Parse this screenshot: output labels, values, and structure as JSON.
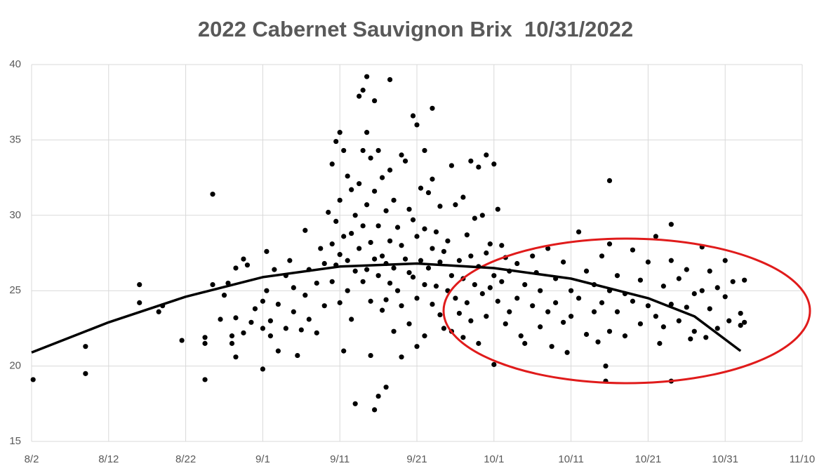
{
  "chart_data": {
    "type": "scatter",
    "title": "2022 Cabernet Sauvignon Brix  10/31/2022",
    "xlim": [
      214,
      314
    ],
    "xticks": [
      {
        "value": 214,
        "label": "8/2"
      },
      {
        "value": 224,
        "label": "8/12"
      },
      {
        "value": 234,
        "label": "8/22"
      },
      {
        "value": 244,
        "label": "9/1"
      },
      {
        "value": 254,
        "label": "9/11"
      },
      {
        "value": 264,
        "label": "9/21"
      },
      {
        "value": 274,
        "label": "10/1"
      },
      {
        "value": 284,
        "label": "10/11"
      },
      {
        "value": 294,
        "label": "10/21"
      },
      {
        "value": 304,
        "label": "10/31"
      },
      {
        "value": 314,
        "label": "11/10"
      }
    ],
    "ylim": [
      15,
      40
    ],
    "yticks": [
      15,
      20,
      25,
      30,
      35,
      40
    ],
    "grid": true,
    "color": "#000000",
    "x": [
      214.2,
      221,
      221,
      228,
      228,
      230.5,
      231,
      233.5,
      236.5,
      236.5,
      236.5,
      237.5,
      237.5,
      238.5,
      239,
      239.5,
      240,
      240,
      240.5,
      240.5,
      240.5,
      241.5,
      241.5,
      242,
      242.5,
      243,
      244,
      244,
      244.5,
      245,
      244,
      244.5,
      245,
      245.5,
      246,
      246,
      247,
      247,
      247.5,
      248,
      248,
      248.5,
      249,
      249.5,
      249.5,
      250,
      250,
      251,
      251,
      251.5,
      252,
      252,
      252.5,
      253,
      253,
      253,
      253.5,
      253.5,
      253.5,
      254,
      254,
      254,
      254,
      254.5,
      254.5,
      254.5,
      255,
      255,
      255,
      255.5,
      255.5,
      255.5,
      256,
      256,
      256,
      256.5,
      256.5,
      256.5,
      257,
      257,
      257,
      257,
      257.5,
      257.5,
      257.5,
      257.5,
      258,
      258,
      258,
      258,
      258.5,
      258.5,
      258.5,
      258.5,
      259,
      259,
      259,
      259,
      259.5,
      259.5,
      259.5,
      260,
      260,
      260,
      260,
      260.5,
      260.5,
      260.5,
      260.5,
      261,
      261,
      261,
      261.5,
      261.5,
      262,
      262,
      262,
      262,
      262.5,
      262.5,
      263,
      263,
      263,
      263.5,
      263.5,
      263.5,
      264,
      264,
      264,
      264,
      264.5,
      264.5,
      265,
      265,
      265,
      265,
      265.5,
      265.5,
      266,
      266,
      266,
      266,
      266.5,
      266.5,
      267,
      267,
      267,
      267.5,
      267.5,
      268,
      268,
      268.5,
      268.5,
      268.5,
      269,
      269,
      269.5,
      269.5,
      270,
      270,
      270,
      270.5,
      270.5,
      271,
      271,
      271,
      271.5,
      271.5,
      272,
      272,
      272,
      272.5,
      272.5,
      273,
      273,
      273,
      273.5,
      273.5,
      274,
      274,
      274,
      274.5,
      274.5,
      275,
      275,
      275.5,
      275.5,
      276,
      276,
      277,
      277,
      277.5,
      278,
      278,
      279,
      279,
      279.5,
      280,
      280,
      281,
      281,
      281.5,
      282,
      282,
      283,
      283,
      283.5,
      284,
      284,
      285,
      285,
      286,
      286,
      287,
      287,
      287.5,
      288,
      288,
      288.5,
      288.5,
      289,
      289,
      289,
      289,
      290,
      290,
      291,
      291,
      292,
      292,
      293,
      293,
      294,
      294,
      295,
      295,
      295.5,
      296,
      296,
      297,
      297,
      297,
      297,
      298,
      298,
      299,
      299,
      299.5,
      300,
      300,
      301,
      301,
      301.5,
      302,
      302,
      303,
      303,
      304,
      304,
      304.5,
      305,
      306,
      306,
      306.5,
      306.5
    ],
    "values": [
      19.1,
      21.3,
      19.5,
      24.2,
      25.4,
      23.6,
      24.0,
      21.7,
      21.5,
      21.9,
      19.1,
      31.4,
      25.4,
      23.1,
      24.7,
      25.5,
      22.0,
      21.5,
      26.5,
      23.2,
      20.6,
      22.2,
      27.1,
      26.7,
      22.9,
      23.8,
      24.3,
      22.5,
      27.6,
      22.0,
      19.8,
      25.0,
      23.0,
      26.4,
      21.0,
      24.1,
      22.5,
      26.0,
      27.0,
      23.6,
      25.2,
      20.7,
      22.4,
      24.7,
      29.0,
      26.4,
      23.1,
      25.5,
      22.2,
      27.8,
      24.0,
      26.8,
      30.2,
      33.4,
      28.1,
      25.6,
      34.9,
      29.6,
      26.7,
      35.5,
      31.0,
      27.4,
      24.2,
      34.3,
      28.6,
      21.0,
      32.6,
      27.0,
      25.0,
      31.7,
      28.8,
      23.1,
      17.5,
      30.0,
      26.3,
      37.9,
      32.1,
      27.8,
      38.3,
      34.3,
      29.3,
      25.6,
      39.2,
      35.5,
      30.7,
      26.4,
      33.8,
      28.2,
      24.3,
      20.7,
      17.1,
      37.6,
      31.6,
      27.1,
      34.3,
      29.3,
      26.0,
      18.0,
      32.5,
      27.3,
      23.7,
      30.3,
      26.8,
      24.4,
      18.6,
      39.0,
      33.0,
      28.3,
      25.5,
      31.0,
      26.5,
      22.3,
      29.2,
      25.0,
      34.0,
      28.0,
      24.0,
      20.6,
      33.6,
      27.1,
      30.4,
      26.2,
      22.8,
      36.6,
      29.7,
      25.9,
      36.0,
      28.6,
      24.5,
      21.3,
      31.8,
      27.0,
      34.3,
      29.1,
      25.4,
      22.0,
      31.5,
      26.5,
      37.1,
      32.4,
      27.8,
      24.1,
      28.9,
      25.3,
      30.6,
      26.9,
      23.4,
      27.6,
      22.5,
      28.3,
      25.0,
      33.3,
      26.0,
      22.3,
      30.7,
      24.5,
      27.0,
      23.5,
      31.2,
      25.8,
      21.9,
      28.7,
      24.2,
      33.6,
      27.3,
      23.0,
      29.8,
      25.4,
      33.2,
      26.6,
      21.5,
      30.0,
      24.8,
      34.0,
      27.5,
      23.3,
      28.1,
      25.2,
      33.4,
      26.0,
      20.1,
      30.4,
      24.3,
      28.0,
      25.6,
      27.2,
      22.8,
      26.3,
      23.6,
      26.8,
      24.5,
      22.0,
      25.4,
      21.5,
      27.3,
      24.0,
      26.2,
      22.6,
      25.0,
      27.8,
      23.6,
      21.3,
      25.8,
      24.2,
      26.9,
      22.9,
      20.9,
      25.0,
      23.3,
      28.9,
      24.5,
      26.3,
      22.1,
      25.4,
      23.6,
      21.6,
      27.3,
      24.2,
      20.0,
      19.0,
      32.3,
      28.1,
      25.0,
      22.3,
      26.0,
      23.6,
      24.8,
      22.0,
      27.7,
      24.3,
      25.7,
      22.8,
      26.9,
      24.0,
      28.6,
      23.3,
      21.5,
      25.3,
      22.6,
      29.4,
      27.0,
      24.1,
      19.0,
      25.8,
      23.0,
      26.4,
      23.9,
      21.8,
      24.8,
      22.3,
      27.9,
      25.0,
      21.9,
      26.3,
      23.8,
      25.2,
      22.5,
      27.0,
      24.6,
      23.0,
      25.6,
      23.5,
      22.7,
      25.7,
      22.9
    ],
    "trendline": {
      "color": "#000000",
      "x": [
        214,
        224,
        234,
        244,
        254,
        264,
        274,
        284,
        294,
        300,
        306
      ],
      "values": [
        20.9,
        22.9,
        24.6,
        25.9,
        26.6,
        26.8,
        26.5,
        25.8,
        24.5,
        23.3,
        21.0
      ]
    }
  }
}
